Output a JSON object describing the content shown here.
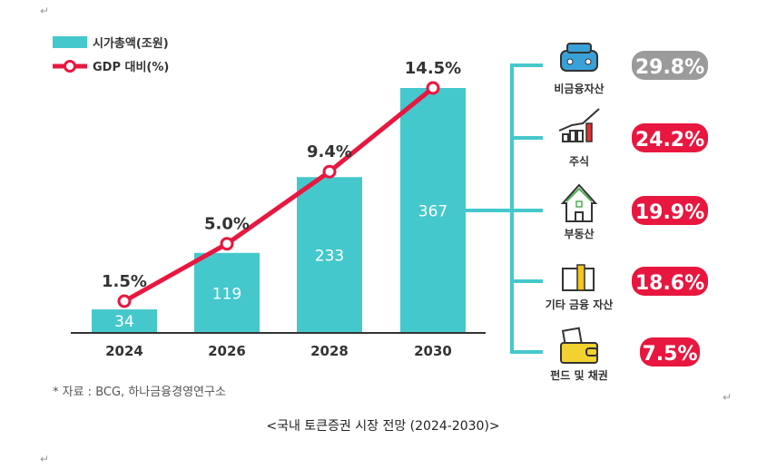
{
  "chart_data": {
    "type": "bar+line",
    "categories": [
      "2024",
      "2026",
      "2028",
      "2030"
    ],
    "series": [
      {
        "name": "시가총액(조원)",
        "type": "bar",
        "values": [
          34,
          119,
          233,
          367
        ],
        "color": "#45c8cc"
      },
      {
        "name": "GDP 대비(%)",
        "type": "line",
        "values": [
          1.5,
          5.0,
          9.4,
          14.5
        ],
        "labels": [
          "1.5%",
          "5.0%",
          "9.4%",
          "14.5%"
        ],
        "color": "#e8173f"
      }
    ],
    "breakdown": [
      {
        "label": "비금융자산",
        "value": "29.8%",
        "icon": "car-icon",
        "color": "#9b9b9b"
      },
      {
        "label": "주식",
        "value": "24.2%",
        "icon": "stock-chart-icon",
        "color": "#e8173f"
      },
      {
        "label": "부동산",
        "value": "19.9%",
        "icon": "house-icon",
        "color": "#e8173f"
      },
      {
        "label": "기타 금융 자산",
        "value": "18.6%",
        "icon": "money-stack-icon",
        "color": "#e8173f"
      },
      {
        "label": "펀드 및 채권",
        "value": "7.5%",
        "icon": "wallet-icon",
        "color": "#e8173f"
      }
    ],
    "source": "* 자료 : BCG, 하나금융경영연구소",
    "caption": "<국내 토큰증권 시장 전망 (2024-2030)>"
  },
  "marks": {
    "return": "↵"
  }
}
